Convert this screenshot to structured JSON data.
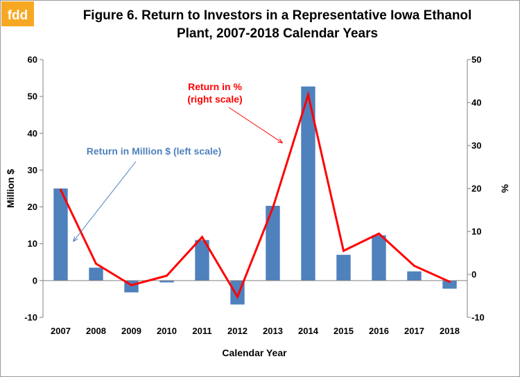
{
  "logo": {
    "text": "fdd",
    "color": "#f7a823"
  },
  "chart_data": {
    "type": "bar",
    "title_line1": "Figure 6. Return to Investors in a Representative Iowa Ethanol",
    "title_line2": "Plant, 2007-2018 Calendar Years",
    "xlabel": "Calendar Year",
    "ylabel_left": "Million $",
    "ylabel_right": "%",
    "categories": [
      "2007",
      "2008",
      "2009",
      "2010",
      "2011",
      "2012",
      "2013",
      "2014",
      "2015",
      "2016",
      "2017",
      "2018"
    ],
    "ylim_left": [
      -10,
      60
    ],
    "yticks_left": [
      -10,
      0,
      10,
      20,
      30,
      40,
      50,
      60
    ],
    "ylim_right": [
      -10,
      50
    ],
    "yticks_right": [
      -10,
      0,
      10,
      20,
      30,
      40,
      50
    ],
    "series": [
      {
        "type": "bar",
        "axis": "left",
        "color": "#4f81bd",
        "values": [
          25,
          3.5,
          -3.2,
          -0.5,
          11,
          -6.5,
          20.3,
          52.7,
          7,
          12.3,
          2.5,
          -2.2
        ]
      },
      {
        "type": "line",
        "axis": "right",
        "color": "#ff0000",
        "values": [
          19.7,
          2.5,
          -2.5,
          -0.3,
          8.7,
          -5.2,
          15.5,
          41.8,
          5.5,
          9.5,
          2,
          -1.7
        ]
      }
    ],
    "annotations": {
      "bar_label": "Return in Million $ (left scale)",
      "bar_color": "#4f81bd",
      "line_label_1": "Return in %",
      "line_label_2": "(right scale)",
      "line_color": "#ff0000"
    },
    "grid": false
  }
}
